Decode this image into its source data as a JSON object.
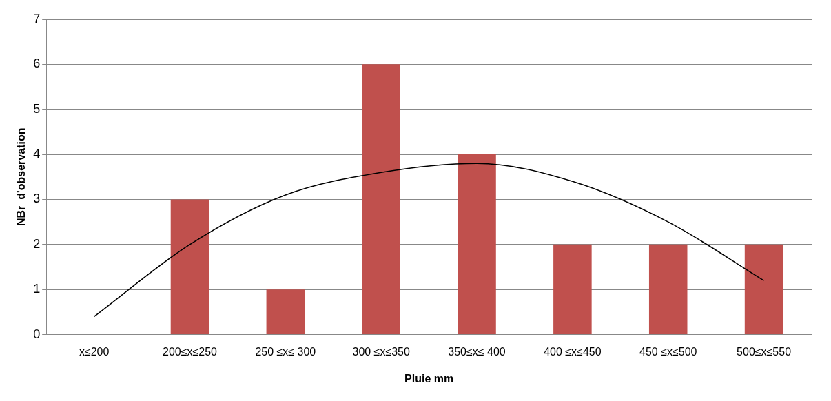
{
  "chart_data": {
    "type": "bar",
    "xlabel": "Pluie mm",
    "ylabel": "NBr  d'observation",
    "categories": [
      "x≤200",
      "200≤x≤250",
      "250 ≤x≤ 300",
      "300 ≤x≤350",
      "350≤x≤ 400",
      "400 ≤x≤450",
      "450 ≤x≤500",
      "500≤x≤550"
    ],
    "series": [
      {
        "color": "#c0504d",
        "values": [
          0,
          3,
          1,
          6,
          4,
          2,
          2,
          2
        ]
      },
      {
        "type": "line",
        "color": "#000000",
        "values": [
          0.4,
          2.0,
          3.1,
          3.6,
          3.8,
          3.4,
          2.5,
          1.2
        ]
      }
    ],
    "ylim": [
      0,
      7
    ],
    "yticks": [
      0,
      1,
      2,
      3,
      4,
      5,
      6,
      7
    ],
    "grid": "y",
    "legend": false,
    "marker": "none"
  }
}
